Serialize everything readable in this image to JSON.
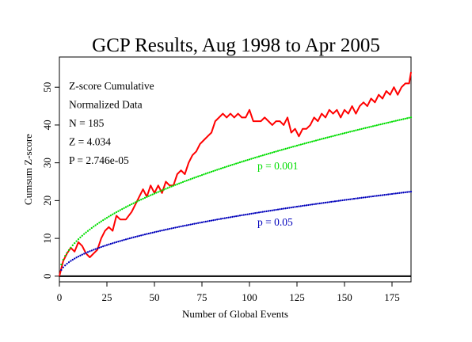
{
  "chart_data": {
    "type": "line",
    "title": "GCP Results, Aug 1998 to Apr 2005",
    "xlabel": "Number of Global Events",
    "ylabel": "Cumsum Z-score",
    "xlim": [
      0,
      185
    ],
    "ylim": [
      -1.5,
      58
    ],
    "x_ticks": [
      {
        "value": 0,
        "label": "0"
      },
      {
        "value": 25,
        "label": "25"
      },
      {
        "value": 50,
        "label": "50"
      },
      {
        "value": 75,
        "label": "75"
      },
      {
        "value": 100,
        "label": "100"
      },
      {
        "value": 125,
        "label": "125"
      },
      {
        "value": 150,
        "label": "150"
      },
      {
        "value": 175,
        "label": "175"
      }
    ],
    "y_ticks": [
      {
        "value": 0,
        "label": "0"
      },
      {
        "value": 10,
        "label": "10"
      },
      {
        "value": 20,
        "label": "20"
      },
      {
        "value": 30,
        "label": "30"
      },
      {
        "value": 40,
        "label": "40"
      },
      {
        "value": 50,
        "label": "50"
      }
    ],
    "stats": [
      "Z-score Cumulative",
      "Normalized Data",
      "N = 185",
      "Z = 4.034",
      "P = 2.746e-05"
    ],
    "series": [
      {
        "kind": "data",
        "color": "#ff0000",
        "x": [
          0,
          2,
          4,
          6,
          8,
          10,
          12,
          14,
          16,
          18,
          20,
          22,
          24,
          26,
          28,
          30,
          32,
          35,
          38,
          40,
          42,
          44,
          46,
          48,
          50,
          52,
          54,
          56,
          58,
          60,
          62,
          64,
          66,
          68,
          70,
          72,
          74,
          76,
          78,
          80,
          82,
          84,
          86,
          88,
          90,
          92,
          94,
          96,
          98,
          100,
          102,
          104,
          106,
          108,
          110,
          112,
          114,
          116,
          118,
          120,
          122,
          124,
          126,
          128,
          130,
          132,
          134,
          136,
          138,
          140,
          142,
          144,
          146,
          148,
          150,
          152,
          154,
          156,
          158,
          160,
          162,
          164,
          166,
          168,
          170,
          172,
          174,
          176,
          178,
          180,
          182,
          184,
          185
        ],
        "y": [
          0,
          4,
          6,
          7.5,
          6.5,
          9,
          8,
          6,
          5,
          6,
          7,
          10,
          12,
          13,
          12,
          16,
          15,
          15,
          17,
          19,
          21,
          23,
          21,
          24,
          22,
          24,
          22,
          25,
          24,
          24,
          27,
          28,
          27,
          30,
          32,
          33,
          35,
          36,
          37,
          38,
          41,
          42,
          43,
          42,
          43,
          42,
          43,
          42,
          42,
          44,
          41,
          41,
          41,
          42,
          41,
          40,
          41,
          41,
          40,
          42,
          38,
          39,
          37,
          39,
          39,
          40,
          42,
          41,
          43,
          42,
          44,
          43,
          44,
          42,
          44,
          43,
          45,
          43,
          45,
          46,
          45,
          47,
          46,
          48,
          47,
          49,
          48,
          50,
          48,
          50,
          51,
          51,
          54
        ]
      },
      {
        "kind": "reference",
        "color": "#00dd00",
        "label": "p = 0.001",
        "coefficient": 3.09
      },
      {
        "kind": "reference",
        "color": "#0000bb",
        "label": "p = 0.05",
        "coefficient": 1.645
      }
    ]
  }
}
